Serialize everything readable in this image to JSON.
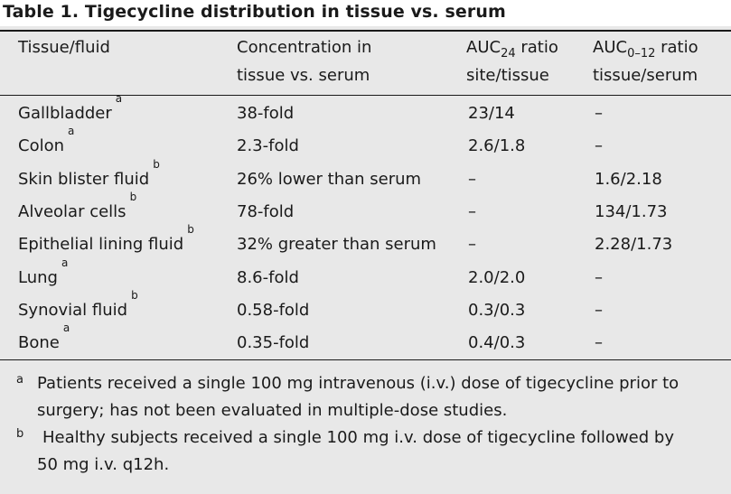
{
  "table": {
    "title": "Table 1.  Tigecycline distribution in tissue vs. serum",
    "headers": {
      "col1": "Tissue/fluid",
      "col2_line1": "Concentration in",
      "col2_line2": "tissue vs. serum",
      "col3_pre": "AUC",
      "col3_sub": "24",
      "col3_post": " ratio",
      "col3_line2": "site/tissue",
      "col4_pre": "AUC",
      "col4_sub": "0–12",
      "col4_post": " ratio",
      "col4_line2": "tissue/serum"
    },
    "rows": [
      {
        "tissue": "Gallbladder",
        "note": "a",
        "concentration": "38-fold",
        "auc24": "23/14",
        "auc012": "–"
      },
      {
        "tissue": "Colon",
        "note": "a",
        "concentration": "2.3-fold",
        "auc24": "2.6/1.8",
        "auc012": "–"
      },
      {
        "tissue": "Skin blister fluid",
        "note": "b",
        "concentration": "26% lower than serum",
        "auc24": "–",
        "auc012": "1.6/2.18"
      },
      {
        "tissue": "Alveolar cells",
        "note": "b",
        "concentration": "78-fold",
        "auc24": "–",
        "auc012": "134/1.73"
      },
      {
        "tissue": "Epithelial lining fluid",
        "note": "b",
        "concentration": "32% greater than serum",
        "auc24": "–",
        "auc012": "2.28/1.73"
      },
      {
        "tissue": "Lung",
        "note": "a",
        "concentration": "8.6-fold",
        "auc24": "2.0/2.0",
        "auc012": "–"
      },
      {
        "tissue": "Synovial fluid",
        "note": "b",
        "concentration": "0.58-fold",
        "auc24": "0.3/0.3",
        "auc012": "–"
      },
      {
        "tissue": "Bone",
        "note": "a",
        "concentration": "0.35-fold",
        "auc24": "0.4/0.3",
        "auc012": "–"
      }
    ],
    "footnotes": [
      {
        "mark": "a",
        "line1": "Patients received a single 100 mg intravenous (i.v.) dose of tigecycline prior to",
        "line2": "surgery; has not been evaluated in multiple-dose studies."
      },
      {
        "mark": "b",
        "line1": "Healthy subjects received a single 100 mg i.v. dose of tigecycline followed by",
        "line2": "50 mg i.v. q12h."
      }
    ]
  }
}
